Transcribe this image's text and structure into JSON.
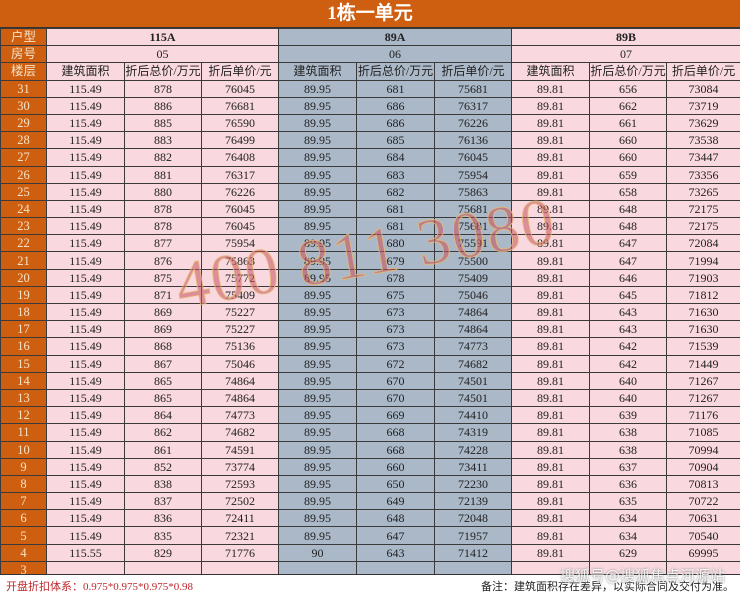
{
  "title": "1栋一单元",
  "labels": {
    "type": "户型",
    "room": "房号",
    "floor": "楼层"
  },
  "units": [
    {
      "type": "115A",
      "room": "05",
      "theme": "pink"
    },
    {
      "type": "89A",
      "room": "06",
      "theme": "blue"
    },
    {
      "type": "89B",
      "room": "07",
      "theme": "pink"
    }
  ],
  "column_headers": [
    "建筑面积",
    "折后总价/万元",
    "折后单价/元"
  ],
  "rows": [
    [
      "31",
      "115.49",
      "878",
      "76045",
      "89.95",
      "681",
      "75681",
      "89.81",
      "656",
      "73084"
    ],
    [
      "30",
      "115.49",
      "886",
      "76681",
      "89.95",
      "686",
      "76317",
      "89.81",
      "662",
      "73719"
    ],
    [
      "29",
      "115.49",
      "885",
      "76590",
      "89.95",
      "686",
      "76226",
      "89.81",
      "661",
      "73629"
    ],
    [
      "28",
      "115.49",
      "883",
      "76499",
      "89.95",
      "685",
      "76136",
      "89.81",
      "660",
      "73538"
    ],
    [
      "27",
      "115.49",
      "882",
      "76408",
      "89.95",
      "684",
      "76045",
      "89.81",
      "660",
      "73447"
    ],
    [
      "26",
      "115.49",
      "881",
      "76317",
      "89.95",
      "683",
      "75954",
      "89.81",
      "659",
      "73356"
    ],
    [
      "25",
      "115.49",
      "880",
      "76226",
      "89.95",
      "682",
      "75863",
      "89.81",
      "658",
      "73265"
    ],
    [
      "24",
      "115.49",
      "878",
      "76045",
      "89.95",
      "681",
      "75681",
      "89.81",
      "648",
      "72175"
    ],
    [
      "23",
      "115.49",
      "878",
      "76045",
      "89.95",
      "681",
      "75681",
      "89.81",
      "648",
      "72175"
    ],
    [
      "22",
      "115.49",
      "877",
      "75954",
      "89.95",
      "680",
      "75591",
      "89.81",
      "647",
      "72084"
    ],
    [
      "21",
      "115.49",
      "876",
      "75863",
      "89.95",
      "679",
      "75500",
      "89.81",
      "647",
      "71994"
    ],
    [
      "20",
      "115.49",
      "875",
      "75772",
      "89.95",
      "678",
      "75409",
      "89.81",
      "646",
      "71903"
    ],
    [
      "19",
      "115.49",
      "871",
      "75409",
      "89.95",
      "675",
      "75046",
      "89.81",
      "645",
      "71812"
    ],
    [
      "18",
      "115.49",
      "869",
      "75227",
      "89.95",
      "673",
      "74864",
      "89.81",
      "643",
      "71630"
    ],
    [
      "17",
      "115.49",
      "869",
      "75227",
      "89.95",
      "673",
      "74864",
      "89.81",
      "643",
      "71630"
    ],
    [
      "16",
      "115.49",
      "868",
      "75136",
      "89.95",
      "673",
      "74773",
      "89.81",
      "642",
      "71539"
    ],
    [
      "15",
      "115.49",
      "867",
      "75046",
      "89.95",
      "672",
      "74682",
      "89.81",
      "642",
      "71449"
    ],
    [
      "14",
      "115.49",
      "865",
      "74864",
      "89.95",
      "670",
      "74501",
      "89.81",
      "640",
      "71267"
    ],
    [
      "13",
      "115.49",
      "865",
      "74864",
      "89.95",
      "670",
      "74501",
      "89.81",
      "640",
      "71267"
    ],
    [
      "12",
      "115.49",
      "864",
      "74773",
      "89.95",
      "669",
      "74410",
      "89.81",
      "639",
      "71176"
    ],
    [
      "11",
      "115.49",
      "862",
      "74682",
      "89.95",
      "668",
      "74319",
      "89.81",
      "638",
      "71085"
    ],
    [
      "10",
      "115.49",
      "861",
      "74591",
      "89.95",
      "668",
      "74228",
      "89.81",
      "638",
      "70994"
    ],
    [
      "9",
      "115.49",
      "852",
      "73774",
      "89.95",
      "660",
      "73411",
      "89.81",
      "637",
      "70904"
    ],
    [
      "8",
      "115.49",
      "838",
      "72593",
      "89.95",
      "650",
      "72230",
      "89.81",
      "636",
      "70813"
    ],
    [
      "7",
      "115.49",
      "837",
      "72502",
      "89.95",
      "649",
      "72139",
      "89.81",
      "635",
      "70722"
    ],
    [
      "6",
      "115.49",
      "836",
      "72411",
      "89.95",
      "648",
      "72048",
      "89.81",
      "634",
      "70631"
    ],
    [
      "5",
      "115.49",
      "835",
      "72321",
      "89.95",
      "647",
      "71957",
      "89.81",
      "634",
      "70540"
    ],
    [
      "4",
      "115.55",
      "829",
      "71776",
      "90",
      "643",
      "71412",
      "89.81",
      "629",
      "69995"
    ],
    [
      "3",
      "",
      "",
      "",
      "",
      "",
      "",
      "",
      "",
      ""
    ]
  ],
  "footer": {
    "discount": "开盘折扣体系：0.975*0.975*0.975*0.98",
    "note": "备注：建筑面积存在差异，以实际合同及交付为准。"
  },
  "watermarks": {
    "phone": "400 811 3080",
    "source": "搜狐号@搜狐焦点河源站"
  },
  "colors": {
    "header": "#cf5f10",
    "pink": "#f9d9df",
    "blue": "#aab8c8",
    "discount_text": "#c0282c"
  }
}
